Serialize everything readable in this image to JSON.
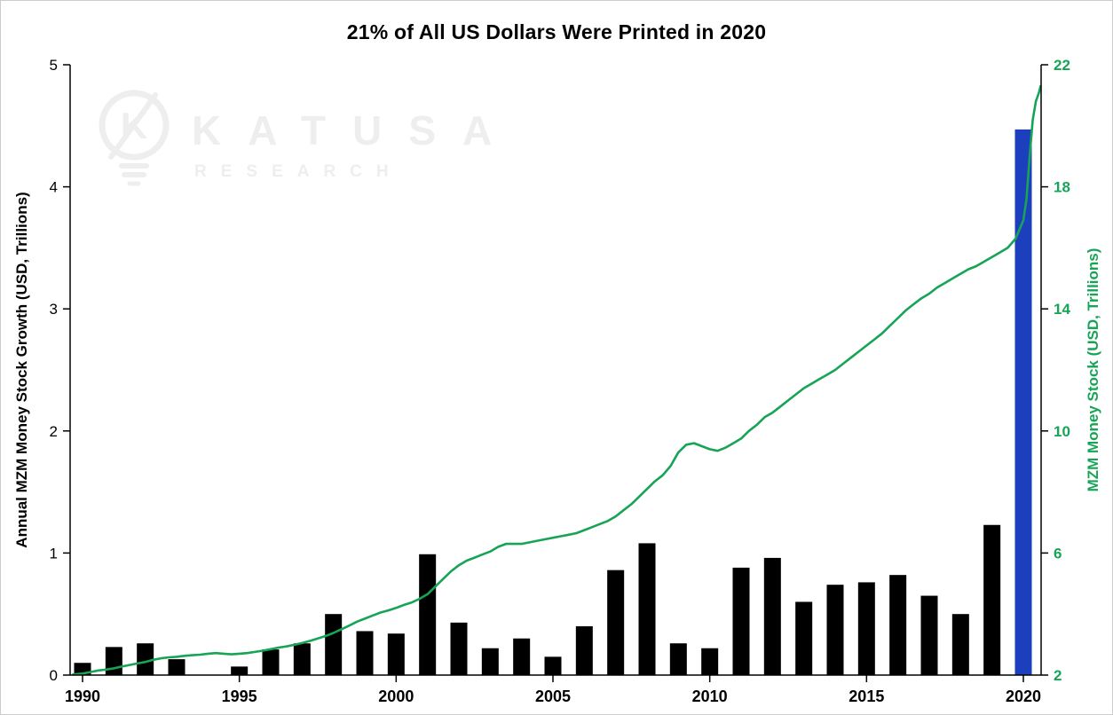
{
  "chart_data": {
    "type": "bar",
    "title": "21% of All US Dollars Were Printed in 2020",
    "left_axis": {
      "label": "Annual MZM Money Stock Growth (USD, Trillions)",
      "ticks": [
        0,
        1,
        2,
        3,
        4,
        5
      ],
      "range": [
        0,
        5
      ]
    },
    "right_axis": {
      "label": "MZM Money Stock (USD, Trillions)",
      "ticks": [
        2,
        6,
        10,
        14,
        18,
        22
      ],
      "range": [
        2,
        22
      ]
    },
    "x_axis": {
      "tick_labels": [
        1990,
        1995,
        2000,
        2005,
        2010,
        2015,
        2020
      ],
      "range": [
        1990,
        2020
      ]
    },
    "grid": "off",
    "legend": "none",
    "categories": [
      1990,
      1991,
      1992,
      1993,
      1994,
      1995,
      1996,
      1997,
      1998,
      1999,
      2000,
      2001,
      2002,
      2003,
      2004,
      2005,
      2006,
      2007,
      2008,
      2009,
      2010,
      2011,
      2012,
      2013,
      2014,
      2015,
      2016,
      2017,
      2018,
      2019,
      2020
    ],
    "series": [
      {
        "name": "Annual MZM Money Stock Growth (USD, Trillions)",
        "type": "bar",
        "axis": "left",
        "values": [
          0.1,
          0.23,
          0.26,
          0.13,
          0.0,
          0.07,
          0.21,
          0.26,
          0.5,
          0.36,
          0.34,
          0.99,
          0.43,
          0.22,
          0.3,
          0.15,
          0.4,
          0.86,
          1.08,
          0.26,
          0.22,
          0.88,
          0.96,
          0.6,
          0.74,
          0.76,
          0.82,
          0.65,
          0.5,
          1.23,
          4.47
        ],
        "highlight_category": 2020
      },
      {
        "name": "MZM Money Stock (USD, Trillions)",
        "type": "line",
        "axis": "right",
        "points": [
          [
            1989.7,
            2.02
          ],
          [
            1990,
            2.05
          ],
          [
            1990.25,
            2.1
          ],
          [
            1990.5,
            2.15
          ],
          [
            1990.75,
            2.18
          ],
          [
            1991,
            2.22
          ],
          [
            1991.25,
            2.28
          ],
          [
            1991.5,
            2.33
          ],
          [
            1991.75,
            2.38
          ],
          [
            1992,
            2.43
          ],
          [
            1992.25,
            2.5
          ],
          [
            1992.5,
            2.55
          ],
          [
            1992.75,
            2.58
          ],
          [
            1993,
            2.6
          ],
          [
            1993.25,
            2.63
          ],
          [
            1993.5,
            2.65
          ],
          [
            1993.75,
            2.67
          ],
          [
            1994,
            2.7
          ],
          [
            1994.25,
            2.72
          ],
          [
            1994.5,
            2.7
          ],
          [
            1994.75,
            2.68
          ],
          [
            1995,
            2.7
          ],
          [
            1995.25,
            2.72
          ],
          [
            1995.5,
            2.76
          ],
          [
            1995.75,
            2.8
          ],
          [
            1996,
            2.85
          ],
          [
            1996.25,
            2.9
          ],
          [
            1996.5,
            2.94
          ],
          [
            1996.75,
            2.99
          ],
          [
            1997,
            3.05
          ],
          [
            1997.25,
            3.12
          ],
          [
            1997.5,
            3.2
          ],
          [
            1997.75,
            3.28
          ],
          [
            1998,
            3.38
          ],
          [
            1998.25,
            3.5
          ],
          [
            1998.5,
            3.62
          ],
          [
            1998.75,
            3.75
          ],
          [
            1999,
            3.85
          ],
          [
            1999.25,
            3.95
          ],
          [
            1999.5,
            4.05
          ],
          [
            1999.75,
            4.12
          ],
          [
            2000,
            4.2
          ],
          [
            2000.25,
            4.3
          ],
          [
            2000.5,
            4.38
          ],
          [
            2000.75,
            4.5
          ],
          [
            2001,
            4.65
          ],
          [
            2001.25,
            4.9
          ],
          [
            2001.5,
            5.15
          ],
          [
            2001.75,
            5.4
          ],
          [
            2002,
            5.6
          ],
          [
            2002.25,
            5.75
          ],
          [
            2002.5,
            5.85
          ],
          [
            2002.75,
            5.95
          ],
          [
            2003,
            6.05
          ],
          [
            2003.25,
            6.2
          ],
          [
            2003.5,
            6.3
          ],
          [
            2003.75,
            6.3
          ],
          [
            2004,
            6.3
          ],
          [
            2004.25,
            6.35
          ],
          [
            2004.5,
            6.4
          ],
          [
            2004.75,
            6.45
          ],
          [
            2005,
            6.5
          ],
          [
            2005.25,
            6.55
          ],
          [
            2005.5,
            6.6
          ],
          [
            2005.75,
            6.65
          ],
          [
            2006,
            6.75
          ],
          [
            2006.25,
            6.85
          ],
          [
            2006.5,
            6.95
          ],
          [
            2006.75,
            7.05
          ],
          [
            2007,
            7.2
          ],
          [
            2007.25,
            7.4
          ],
          [
            2007.5,
            7.6
          ],
          [
            2007.75,
            7.85
          ],
          [
            2008,
            8.1
          ],
          [
            2008.25,
            8.35
          ],
          [
            2008.5,
            8.55
          ],
          [
            2008.75,
            8.85
          ],
          [
            2009,
            9.3
          ],
          [
            2009.25,
            9.55
          ],
          [
            2009.5,
            9.6
          ],
          [
            2009.75,
            9.5
          ],
          [
            2010,
            9.4
          ],
          [
            2010.25,
            9.35
          ],
          [
            2010.5,
            9.45
          ],
          [
            2010.75,
            9.6
          ],
          [
            2011,
            9.75
          ],
          [
            2011.25,
            10.0
          ],
          [
            2011.5,
            10.2
          ],
          [
            2011.75,
            10.45
          ],
          [
            2012,
            10.6
          ],
          [
            2012.25,
            10.8
          ],
          [
            2012.5,
            11.0
          ],
          [
            2012.75,
            11.2
          ],
          [
            2013,
            11.4
          ],
          [
            2013.25,
            11.55
          ],
          [
            2013.5,
            11.7
          ],
          [
            2013.75,
            11.85
          ],
          [
            2014,
            12.0
          ],
          [
            2014.25,
            12.2
          ],
          [
            2014.5,
            12.4
          ],
          [
            2014.75,
            12.6
          ],
          [
            2015,
            12.8
          ],
          [
            2015.25,
            13.0
          ],
          [
            2015.5,
            13.2
          ],
          [
            2015.75,
            13.45
          ],
          [
            2016,
            13.7
          ],
          [
            2016.25,
            13.95
          ],
          [
            2016.5,
            14.15
          ],
          [
            2016.75,
            14.35
          ],
          [
            2017,
            14.5
          ],
          [
            2017.25,
            14.7
          ],
          [
            2017.5,
            14.85
          ],
          [
            2017.75,
            15.0
          ],
          [
            2018,
            15.15
          ],
          [
            2018.25,
            15.3
          ],
          [
            2018.5,
            15.4
          ],
          [
            2018.75,
            15.55
          ],
          [
            2019,
            15.7
          ],
          [
            2019.25,
            15.85
          ],
          [
            2019.5,
            16.0
          ],
          [
            2019.75,
            16.3
          ],
          [
            2020,
            16.9
          ],
          [
            2020.1,
            17.6
          ],
          [
            2020.2,
            19.0
          ],
          [
            2020.3,
            20.2
          ],
          [
            2020.4,
            20.8
          ],
          [
            2020.5,
            21.1
          ],
          [
            2020.55,
            21.3
          ]
        ]
      }
    ],
    "colors": {
      "bar": "#000000",
      "bar_highlight": "#1c3fbe",
      "line": "#17a456",
      "axis": "#000000",
      "right_axis_text": "#17a456",
      "watermark": "#eeeeee"
    },
    "watermark": {
      "line1": "KATUSA",
      "line2": "RESEARCH",
      "icon": "lightbulb-k-logo"
    }
  }
}
